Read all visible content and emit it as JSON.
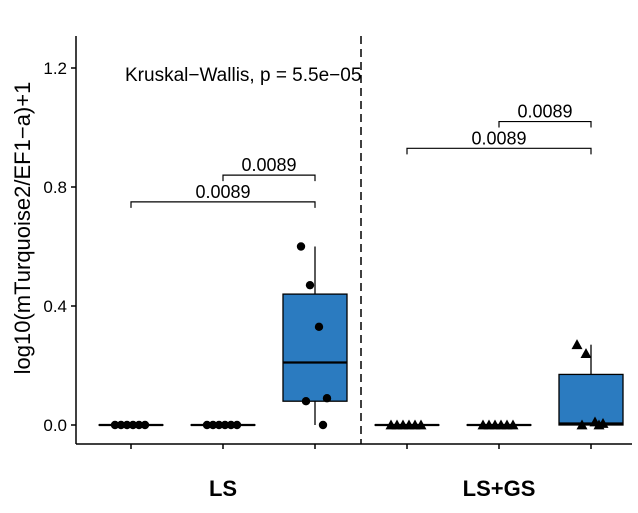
{
  "chart_data": {
    "type": "boxplot",
    "ylabel": "log10(mTurquoise2/EF1−a)+1",
    "xlabel": "",
    "ylim": [
      -0.06,
      1.32
    ],
    "yticks": [
      0.0,
      0.4,
      0.8,
      1.2
    ],
    "ytick_labels": [
      "0.0",
      "0.4",
      "0.8",
      "1.2"
    ],
    "annotation": "Kruskal−Wallis, p = 5.5e−05",
    "facet_labels": [
      "LS",
      "LS+GS"
    ],
    "groups": [
      {
        "facet": "LS",
        "marker": "circle",
        "boxes": [
          {
            "points": [
              0,
              0,
              0,
              0,
              0,
              0
            ],
            "q1": 0,
            "median": 0,
            "q3": 0,
            "whisker_low": 0,
            "whisker_high": 0,
            "color": "#ffffff"
          },
          {
            "points": [
              0,
              0,
              0,
              0,
              0,
              0
            ],
            "q1": 0,
            "median": 0,
            "q3": 0,
            "whisker_low": 0,
            "whisker_high": 0,
            "color": "#ffffff"
          },
          {
            "points": [
              0.6,
              0.47,
              0.33,
              0.09,
              0.08,
              0.0
            ],
            "q1": 0.08,
            "median": 0.21,
            "q3": 0.44,
            "whisker_low": 0.0,
            "whisker_high": 0.6,
            "color": "#2b7bc0"
          }
        ],
        "brackets": [
          {
            "from": 0,
            "to": 2,
            "y": 0.75,
            "label": "0.0089"
          },
          {
            "from": 1,
            "to": 2,
            "y": 0.84,
            "label": "0.0089"
          }
        ]
      },
      {
        "facet": "LS+GS",
        "marker": "triangle",
        "boxes": [
          {
            "points": [
              0,
              0,
              0,
              0,
              0,
              0
            ],
            "q1": 0,
            "median": 0,
            "q3": 0,
            "whisker_low": 0,
            "whisker_high": 0,
            "color": "#ffffff"
          },
          {
            "points": [
              0,
              0,
              0,
              0,
              0,
              0
            ],
            "q1": 0,
            "median": 0,
            "q3": 0,
            "whisker_low": 0,
            "whisker_high": 0,
            "color": "#ffffff"
          },
          {
            "points": [
              0.27,
              0.24,
              0.01,
              0.005,
              0.0,
              0.0
            ],
            "q1": 0.0,
            "median": 0.005,
            "q3": 0.17,
            "whisker_low": 0.0,
            "whisker_high": 0.27,
            "color": "#2b7bc0"
          }
        ],
        "brackets": [
          {
            "from": 0,
            "to": 2,
            "y": 0.93,
            "label": "0.0089"
          },
          {
            "from": 1,
            "to": 2,
            "y": 1.02,
            "label": "0.0089"
          }
        ]
      }
    ],
    "facet_divider": "dashed",
    "grid": false,
    "legend": "none"
  }
}
